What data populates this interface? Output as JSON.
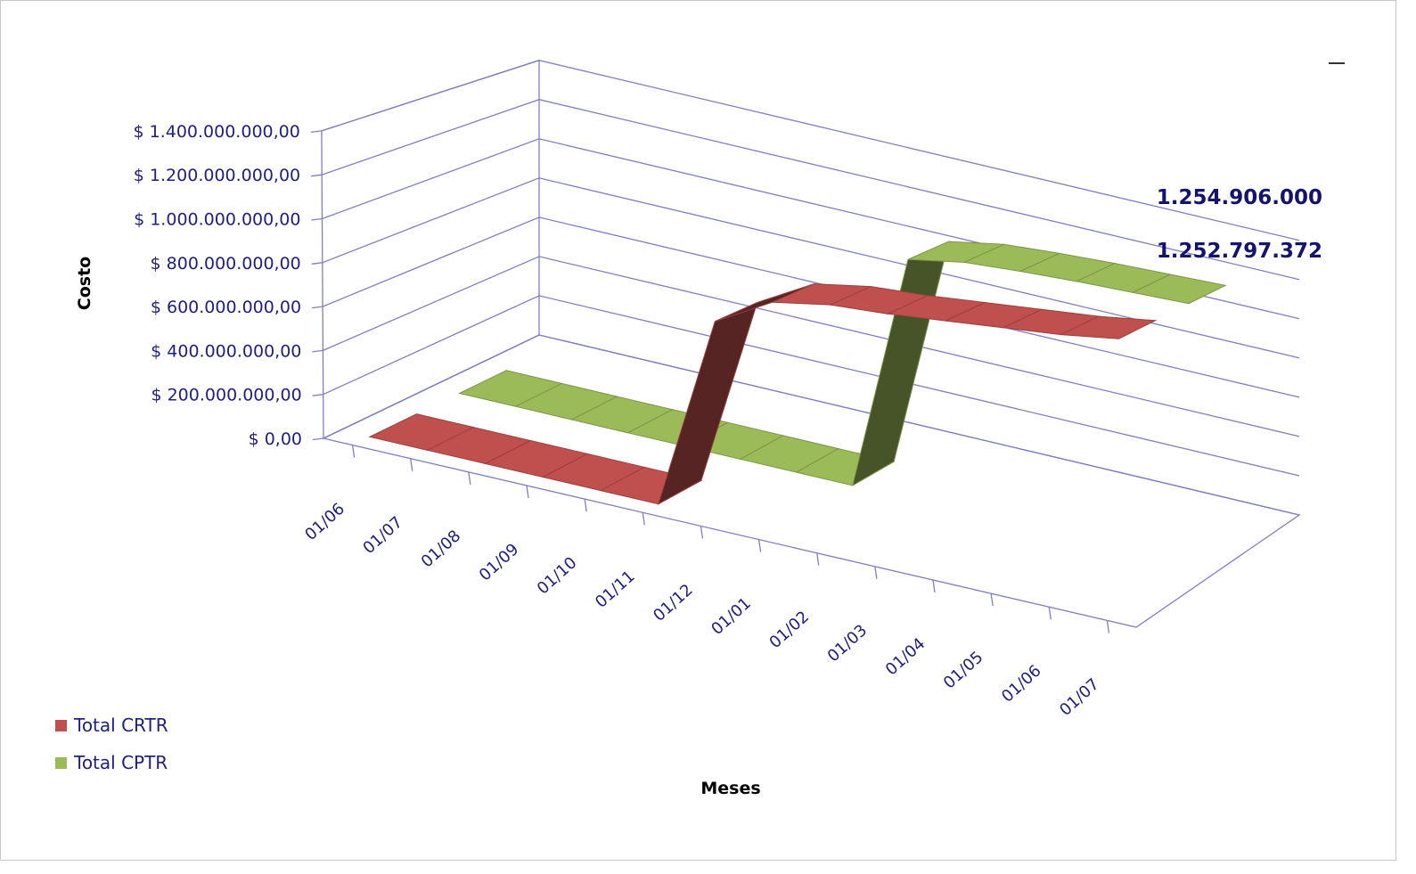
{
  "chart_data": {
    "type": "line",
    "title": "",
    "xlabel": "Meses",
    "ylabel": "Costo",
    "categories": [
      "01/06",
      "01/07",
      "01/08",
      "01/09",
      "01/10",
      "01/11",
      "01/12",
      "01/01",
      "01/02",
      "01/03",
      "01/04",
      "01/05",
      "01/06",
      "01/07"
    ],
    "y_ticks": [
      "$ 0,00",
      "$ 200.000.000,00",
      "$ 400.000.000,00",
      "$ 600.000.000,00",
      "$ 800.000.000,00",
      "$ 1.000.000.000,00",
      "$ 1.200.000.000,00",
      "$ 1.400.000.000,00"
    ],
    "ylim": [
      0,
      1400000000
    ],
    "grid": true,
    "legend_position": "bottom-left",
    "series": [
      {
        "name": "Total CRTR",
        "color": "#c0504d",
        "values": [
          0,
          0,
          0,
          0,
          0,
          0,
          900000000,
          1050000000,
          1100000000,
          1120000000,
          1150000000,
          1180000000,
          1210000000,
          1252797372
        ],
        "end_label": "1.252.797.372"
      },
      {
        "name": "Total CPTR",
        "color": "#9bbb59",
        "values": [
          0,
          0,
          0,
          0,
          0,
          0,
          0,
          0,
          1150000000,
          1200000000,
          1220000000,
          1235000000,
          1245000000,
          1254906000
        ],
        "end_label": "1.254.906.000"
      }
    ]
  }
}
